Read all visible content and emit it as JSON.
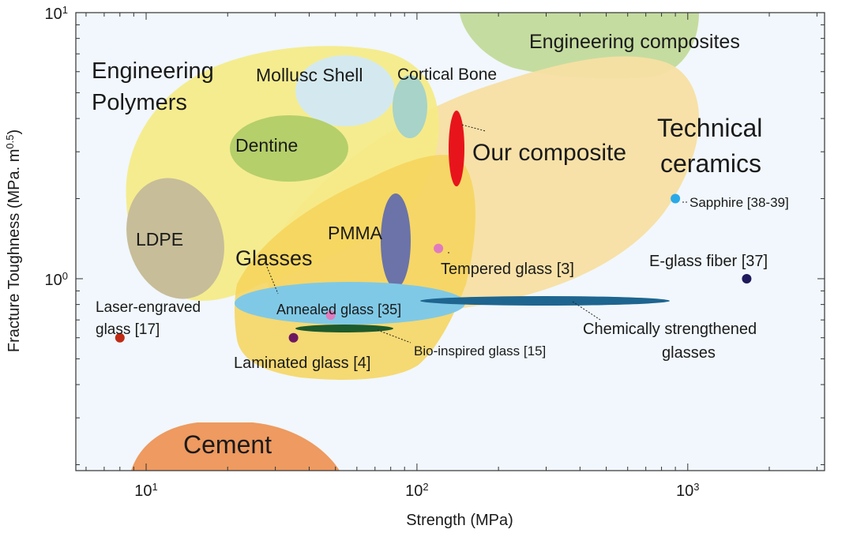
{
  "chart_data": {
    "type": "scatter",
    "title": "",
    "xlabel": "Strength (MPa)",
    "ylabel": "Fracture Toughness (MPa. m",
    "ylabel_sup": "0.5",
    "ylabel_close": ")",
    "x_scale": "log",
    "y_scale": "log",
    "xlim": [
      5.5,
      3200
    ],
    "ylim": [
      0.19,
      10
    ],
    "x_ticks": [
      {
        "value": 10,
        "base": "10",
        "exp": "1"
      },
      {
        "value": 100,
        "base": "10",
        "exp": "2"
      },
      {
        "value": 1000,
        "base": "10",
        "exp": "3"
      }
    ],
    "y_ticks": [
      {
        "value": 1,
        "base": "10",
        "exp": "0"
      },
      {
        "value": 10,
        "base": "10",
        "exp": "1"
      }
    ],
    "grid": false,
    "regions": [
      {
        "name": "Engineering composites",
        "color": "#c5dca0"
      },
      {
        "name": "Technical ceramics",
        "color": "#f7dfa3"
      },
      {
        "name": "Engineering Polymers",
        "color": "#f5ea85"
      },
      {
        "name": "Glasses",
        "color": "#f6d45a"
      },
      {
        "name": "Cement",
        "color": "#ee9a60"
      },
      {
        "name": "Mollusc Shell",
        "color": "#d4e9ef"
      },
      {
        "name": "Cortical Bone",
        "color": "#a8d3c8"
      },
      {
        "name": "Dentine",
        "color": "#b5cf6a"
      },
      {
        "name": "LDPE",
        "color": "#c7bd99"
      },
      {
        "name": "PMMA",
        "color": "#6b73a8"
      },
      {
        "name": "Annealed glass [35]",
        "color": "#80c9e6"
      },
      {
        "name": "Chemically strengthened glasses",
        "color": "#1e6590"
      },
      {
        "name": "Bio-inspired glass [15]",
        "color": "#1d5a2c"
      },
      {
        "name": "Our composite",
        "color": "#e8141c"
      }
    ],
    "points": [
      {
        "name": "Sapphire [38-39]",
        "x": 900,
        "y": 2.0,
        "color": "#29a9e8"
      },
      {
        "name": "E-glass fiber [37]",
        "x": 1650,
        "y": 1.0,
        "color": "#1e1a5c"
      },
      {
        "name": "Tempered glass [3]",
        "x": 120,
        "y": 1.3,
        "color": "#e07bbf"
      },
      {
        "name": "Laser-engraved glass [17]",
        "x": 8,
        "y": 0.6,
        "color": "#c02a14"
      },
      {
        "name": "Laminated glass [4]",
        "x": 35,
        "y": 0.6,
        "color": "#6e1760"
      },
      {
        "name": "Annealed glass",
        "x": 48,
        "y": 0.73,
        "color": "#e07bbf"
      }
    ],
    "labels": {
      "engineering_composites": "Engineering composites",
      "engineering_line1": "Engineering",
      "engineering_line2": "Polymers",
      "mollusc": "Mollusc Shell",
      "cortical": "Cortical Bone",
      "dentine": "Dentine",
      "technical_line1": "Technical",
      "technical_line2": "ceramics",
      "our_composite": "Our composite",
      "ldpe": "LDPE",
      "pmma": "PMMA",
      "glasses": "Glasses",
      "sapphire": "Sapphire [38-39]",
      "egf": "E-glass fiber [37]",
      "tempered": "Tempered glass [3]",
      "annealed": "Annealed glass [35]",
      "chem_line1": "Chemically strengthened",
      "chem_line2": "glasses",
      "laser_line1": "Laser-engraved",
      "laser_line2": "glass [17]",
      "laminated": "Laminated glass [4]",
      "bio": "Bio-inspired glass [15]",
      "cement": "Cement"
    }
  }
}
